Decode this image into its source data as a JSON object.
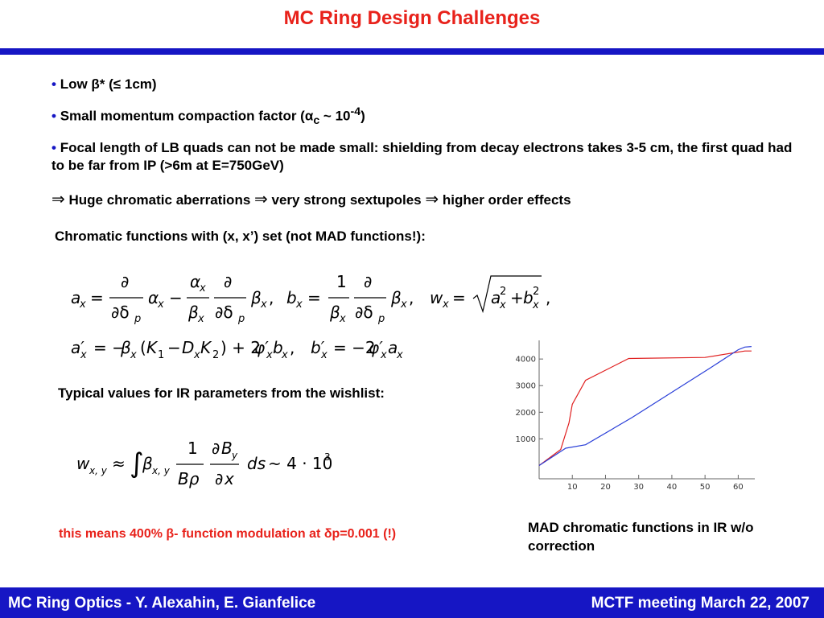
{
  "slide": {
    "title": "MC Ring Design Challenges",
    "bullets": [
      {
        "pre": "Low ",
        "beta": "β",
        "star": "*",
        "rest": " (≤ 1cm)"
      },
      {
        "pre": "Small momentum compaction factor (",
        "alpha": "α",
        "sub": "c",
        "tilde": " ~ ",
        "base": "10",
        "sup": "-4",
        "post": ")"
      },
      {
        "text": "Focal length of LB quads can not be made small: shielding from decay electrons takes 3-5 cm, the first quad had to be far from IP (>6m at E=750GeV)"
      }
    ],
    "dot": "•",
    "implications": {
      "arrow": "⇒",
      "parts": [
        "Huge chromatic aberrations",
        "very strong sextupoles",
        "higher order effects"
      ]
    },
    "chromatic_heading": "Chromatic functions with (x, x’) set (not MAD functions!):",
    "ir_heading": "Typical values for IR parameters from the wishlist:",
    "note": {
      "pre": "this means 400% ",
      "beta": "β",
      "mid": "- function modulation at ",
      "delta": "δ",
      "post": "p=0.001 (!)"
    },
    "caption": "MAD chromatic functions in IR w/o correction"
  },
  "footer": {
    "left": "MC Ring Optics - Y. Alexahin, E. Gianfelice",
    "right": "MCTF meeting March 22, 2007"
  },
  "chart_data": {
    "type": "line",
    "title": "",
    "xlabel": "",
    "ylabel": "",
    "xlim": [
      0,
      65
    ],
    "ylim": [
      -500,
      4700
    ],
    "x_ticks": [
      10,
      20,
      30,
      40,
      50,
      60
    ],
    "y_ticks": [
      1000,
      2000,
      3000,
      4000
    ],
    "grid": false,
    "series": [
      {
        "color": "#e02020",
        "points": [
          [
            0,
            0
          ],
          [
            6.5,
            600
          ],
          [
            9,
            1600
          ],
          [
            10,
            2300
          ],
          [
            14,
            3200
          ],
          [
            27,
            4020
          ],
          [
            50,
            4060
          ],
          [
            62,
            4300
          ],
          [
            64,
            4300
          ]
        ]
      },
      {
        "color": "#2a3fd8",
        "points": [
          [
            0,
            0
          ],
          [
            8,
            650
          ],
          [
            14,
            780
          ],
          [
            28,
            1800
          ],
          [
            40,
            2750
          ],
          [
            52,
            3700
          ],
          [
            60,
            4350
          ],
          [
            62,
            4450
          ],
          [
            64,
            4470
          ]
        ]
      }
    ]
  }
}
